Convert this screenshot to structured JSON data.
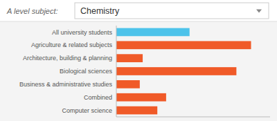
{
  "chart_data": {
    "type": "bar",
    "orientation": "horizontal",
    "title": "A level subject:",
    "subtitle": "Chemistry",
    "categories": [
      "All university students",
      "Agriculture & related subjects",
      "Architecture, building & planning",
      "Biological sciences",
      "Business & administrative studies",
      "Combined",
      "Computer science"
    ],
    "values": [
      50,
      92,
      18,
      82,
      16,
      34,
      28
    ],
    "colors": [
      "#4dc3ea",
      "#f05a28",
      "#f05a28",
      "#f05a28",
      "#f05a28",
      "#f05a28",
      "#f05a28"
    ],
    "xlim": [
      0,
      105
    ],
    "tick_labels": "y",
    "grid": false
  }
}
